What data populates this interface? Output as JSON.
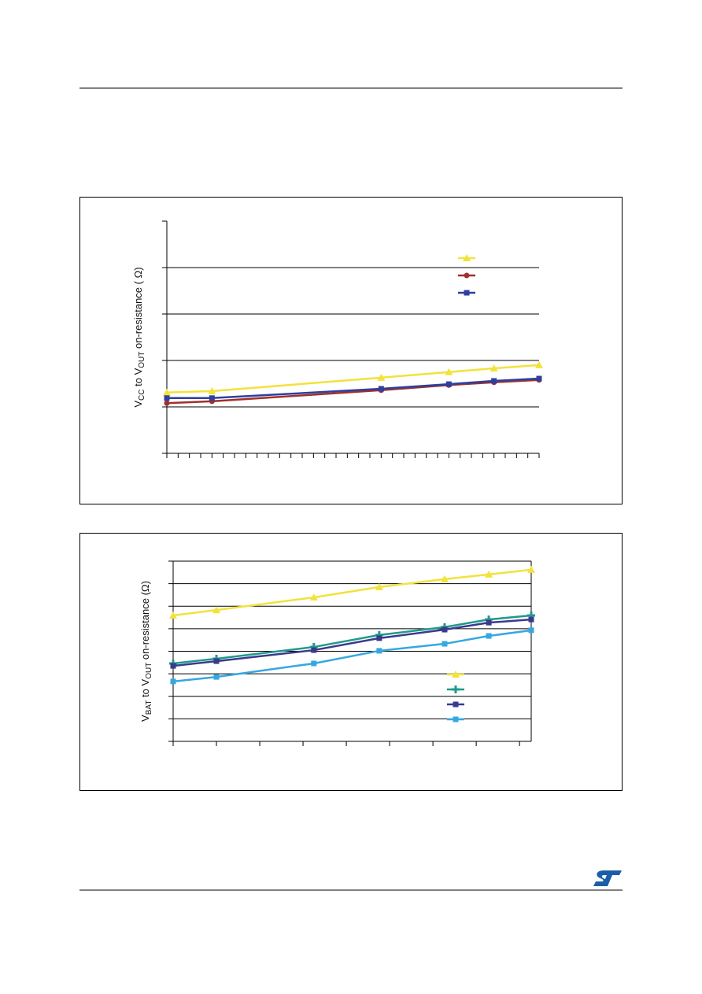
{
  "chart_data": [
    {
      "type": "line",
      "ylabel": [
        "V",
        "CC",
        " to V",
        "OUT",
        "  on-resistance ( Ω)"
      ],
      "xlim": [
        0,
        33
      ],
      "xticks": [
        0,
        1,
        2,
        3,
        4,
        5,
        6,
        7,
        8,
        9,
        10,
        11,
        12,
        13,
        14,
        15,
        16,
        17,
        18,
        19,
        20,
        21,
        22,
        23,
        24,
        25,
        26,
        27,
        28,
        29,
        30,
        31,
        32,
        33
      ],
      "ylim": [
        0,
        5
      ],
      "yticks": [
        0,
        1,
        2,
        3,
        4,
        5
      ],
      "grid": true,
      "x": [
        0,
        4,
        19,
        25,
        29,
        33
      ],
      "series": [
        {
          "color": "#f2e23c",
          "marker": "triangle",
          "values": [
            1.31,
            1.34,
            1.63,
            1.75,
            1.83,
            1.9
          ]
        },
        {
          "color": "#a0302a",
          "marker": "circle",
          "values": [
            1.08,
            1.12,
            1.36,
            1.47,
            1.53,
            1.58
          ]
        },
        {
          "color": "#2e3f9e",
          "marker": "square",
          "values": [
            1.19,
            1.19,
            1.39,
            1.49,
            1.56,
            1.61
          ]
        }
      ]
    },
    {
      "type": "line",
      "ylabel": [
        "V",
        "BAT",
        "  to V",
        "OUT",
        "  on-resistance (Ω)"
      ],
      "xlim": [
        0,
        8.27
      ],
      "xticks": [
        0,
        1,
        2,
        3,
        4,
        5,
        6,
        7,
        8
      ],
      "ylim": [
        0,
        8
      ],
      "yticks": [
        0,
        1,
        2,
        3,
        4,
        5,
        6,
        7,
        8
      ],
      "grid": true,
      "x": [
        0,
        1,
        3.25,
        4.76,
        6.27,
        7.29,
        8.27
      ],
      "series": [
        {
          "color": "#f2e23c",
          "marker": "triangle",
          "values": [
            5.59,
            5.83,
            6.39,
            6.85,
            7.2,
            7.41,
            7.62
          ]
        },
        {
          "color": "#1f9a8a",
          "marker": "plus",
          "values": [
            3.46,
            3.67,
            4.19,
            4.72,
            5.07,
            5.41,
            5.59
          ]
        },
        {
          "color": "#3a3a8c",
          "marker": "square",
          "values": [
            3.35,
            3.56,
            4.05,
            4.58,
            4.96,
            5.27,
            5.41
          ]
        },
        {
          "color": "#35a8e0",
          "marker": "square",
          "values": [
            2.66,
            2.86,
            3.46,
            4.02,
            4.33,
            4.68,
            4.93
          ]
        }
      ]
    }
  ]
}
